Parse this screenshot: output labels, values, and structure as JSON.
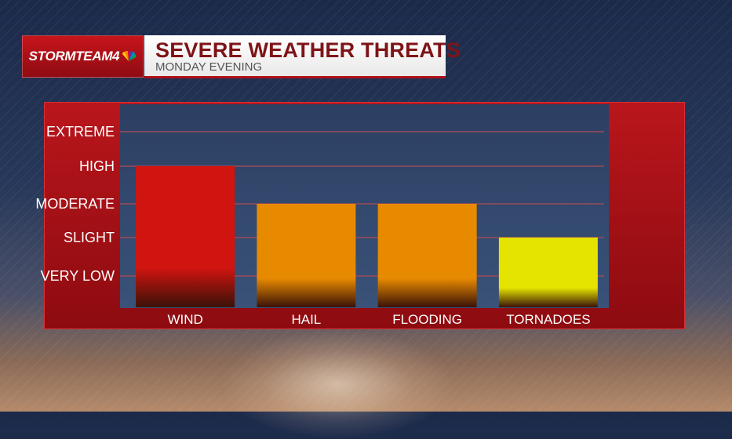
{
  "brand": {
    "logo_text": "STORMTEAM4"
  },
  "header": {
    "title": "SEVERE WEATHER THREATS",
    "subtitle": "MONDAY EVENING"
  },
  "chart_data": {
    "type": "bar",
    "categories": [
      "WIND",
      "HAIL",
      "FLOODING",
      "TORNADOES"
    ],
    "values": [
      4,
      3,
      3,
      2
    ],
    "y_levels": [
      "VERY LOW",
      "SLIGHT",
      "MODERATE",
      "HIGH",
      "EXTREME"
    ],
    "ylim": [
      0,
      5
    ],
    "bar_colors": [
      "#d0140f",
      "#e88a00",
      "#e88a00",
      "#e4e400"
    ],
    "grid": true,
    "title": "SEVERE WEATHER THREATS",
    "subtitle": "MONDAY EVENING"
  }
}
